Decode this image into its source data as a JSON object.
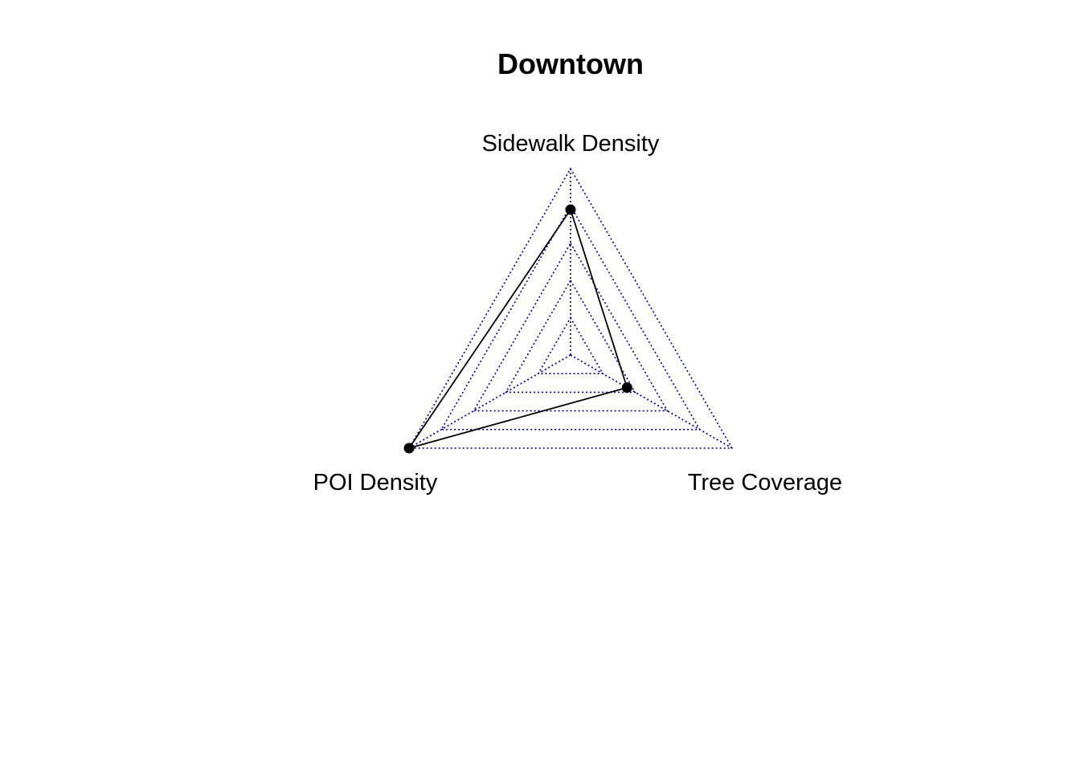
{
  "chart_data": {
    "type": "radar",
    "title": "Downtown",
    "axes": [
      "Sidewalk Density",
      "Tree Coverage",
      "POI Density"
    ],
    "series": [
      {
        "values": [
          0.78,
          0.35,
          1.0
        ]
      }
    ],
    "range": [
      0,
      1
    ],
    "grid_levels": 5,
    "grid_style": "dotted",
    "colors": {
      "grid": "#00008b",
      "series": "#000000"
    }
  }
}
